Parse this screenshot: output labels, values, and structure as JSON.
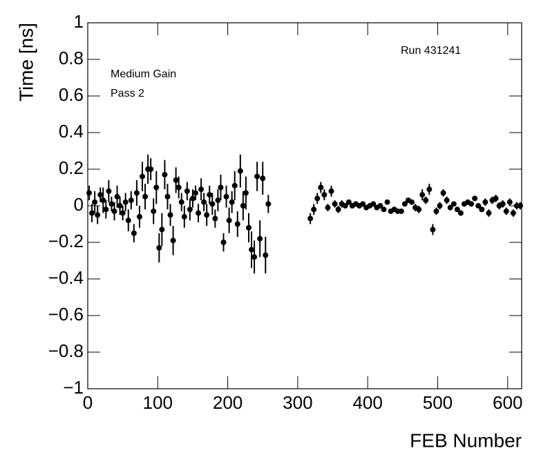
{
  "chart_data": {
    "type": "scatter",
    "xlabel": "FEB Number",
    "ylabel": "Time [ns]",
    "annotations": [
      "Medium Gain",
      "Pass 2",
      "Run 431241"
    ],
    "xlim": [
      0,
      620
    ],
    "xticks": [
      0,
      100,
      200,
      300,
      400,
      500,
      600
    ],
    "ylim": [
      -1,
      1
    ],
    "yticks": [
      {
        "value": -1,
        "label": "−1"
      },
      {
        "value": -0.8,
        "label": "−0.8"
      },
      {
        "value": -0.6,
        "label": "−0.6"
      },
      {
        "value": -0.4,
        "label": "−0.4"
      },
      {
        "value": -0.2,
        "label": "−0.2"
      },
      0,
      0.2,
      0.4,
      0.6,
      0.8,
      1
    ],
    "series": [
      {
        "color": "#000000",
        "x": [
          2,
          6,
          10,
          14,
          18,
          22,
          26,
          30,
          34,
          38,
          42,
          46,
          50,
          54,
          58,
          62,
          66,
          70,
          74,
          78,
          82,
          86,
          90,
          94,
          98,
          102,
          106,
          110,
          114,
          118,
          122,
          126,
          130,
          134,
          138,
          142,
          146,
          150,
          154,
          158,
          162,
          166,
          170,
          174,
          178,
          182,
          186,
          190,
          194,
          198,
          202,
          206,
          210,
          214,
          218,
          222,
          226,
          230,
          234,
          238,
          242,
          246,
          250,
          254,
          258,
          318,
          323,
          328,
          333,
          338,
          343,
          348,
          353,
          358,
          363,
          368,
          373,
          378,
          383,
          388,
          393,
          398,
          403,
          408,
          413,
          418,
          423,
          428,
          433,
          438,
          443,
          448,
          453,
          458,
          463,
          468,
          473,
          478,
          483,
          488,
          493,
          498,
          503,
          508,
          513,
          518,
          523,
          528,
          533,
          538,
          543,
          548,
          553,
          558,
          563,
          568,
          573,
          578,
          583,
          588,
          593,
          598,
          603,
          608,
          613,
          618
        ],
        "values": [
          0.07,
          -0.04,
          0.02,
          -0.05,
          0.06,
          0.03,
          -0.02,
          0.08,
          0.01,
          -0.03,
          0.05,
          0.0,
          -0.04,
          0.02,
          -0.08,
          0.03,
          -0.15,
          0.07,
          -0.06,
          0.16,
          0.05,
          0.2,
          0.2,
          -0.03,
          0.1,
          -0.23,
          -0.13,
          0.17,
          0.05,
          -0.05,
          -0.19,
          0.14,
          0.1,
          0.02,
          -0.06,
          0.08,
          -0.02,
          0.04,
          0.07,
          -0.04,
          0.09,
          0.02,
          -0.05,
          0.06,
          0.01,
          -0.07,
          0.03,
          0.1,
          -0.2,
          0.05,
          -0.08,
          0.02,
          0.11,
          -0.1,
          0.19,
          0.0,
          0.07,
          -0.12,
          -0.24,
          -0.28,
          0.16,
          -0.18,
          0.15,
          -0.27,
          0.01,
          -0.07,
          -0.02,
          0.04,
          0.1,
          0.06,
          -0.01,
          0.08,
          0.01,
          -0.02,
          0.01,
          0.0,
          0.02,
          0.0,
          0.01,
          0.0,
          0.01,
          -0.01,
          0.0,
          0.01,
          -0.01,
          0.0,
          -0.02,
          0.02,
          -0.03,
          -0.02,
          -0.03,
          -0.03,
          0.01,
          0.03,
          0.02,
          -0.01,
          -0.02,
          0.06,
          0.03,
          0.09,
          -0.13,
          -0.03,
          0.0,
          0.07,
          0.03,
          -0.01,
          0.01,
          -0.02,
          -0.04,
          0.01,
          0.02,
          0.01,
          0.04,
          0.0,
          -0.02,
          0.02,
          -0.04,
          0.03,
          0.04,
          0.0,
          0.01,
          -0.03,
          0.02,
          -0.04,
          0.0,
          0.0
        ],
        "errors": [
          0.04,
          0.05,
          0.06,
          0.05,
          0.04,
          0.07,
          0.05,
          0.06,
          0.04,
          0.05,
          0.06,
          0.05,
          0.04,
          0.05,
          0.06,
          0.05,
          0.05,
          0.07,
          0.06,
          0.08,
          0.07,
          0.08,
          0.06,
          0.07,
          0.09,
          0.08,
          0.09,
          0.08,
          0.07,
          0.06,
          0.08,
          0.07,
          0.06,
          0.05,
          0.06,
          0.05,
          0.06,
          0.05,
          0.04,
          0.05,
          0.06,
          0.05,
          0.06,
          0.05,
          0.06,
          0.05,
          0.06,
          0.07,
          0.05,
          0.06,
          0.07,
          0.06,
          0.08,
          0.07,
          0.09,
          0.08,
          0.09,
          0.08,
          0.1,
          0.09,
          0.08,
          0.1,
          0.09,
          0.1,
          0.05,
          0.03,
          0.03,
          0.03,
          0.03,
          0.03,
          0.02,
          0.03,
          0.02,
          0.02,
          0.02,
          0.01,
          0.01,
          0.01,
          0.01,
          0.01,
          0.01,
          0.01,
          0.01,
          0.01,
          0.01,
          0.01,
          0.01,
          0.01,
          0.01,
          0.01,
          0.01,
          0.01,
          0.01,
          0.01,
          0.01,
          0.02,
          0.02,
          0.03,
          0.02,
          0.03,
          0.03,
          0.02,
          0.02,
          0.02,
          0.02,
          0.01,
          0.01,
          0.01,
          0.01,
          0.01,
          0.01,
          0.01,
          0.01,
          0.01,
          0.01,
          0.02,
          0.02,
          0.02,
          0.02,
          0.02,
          0.02,
          0.02,
          0.02,
          0.02,
          0.02,
          0.02
        ]
      }
    ]
  }
}
